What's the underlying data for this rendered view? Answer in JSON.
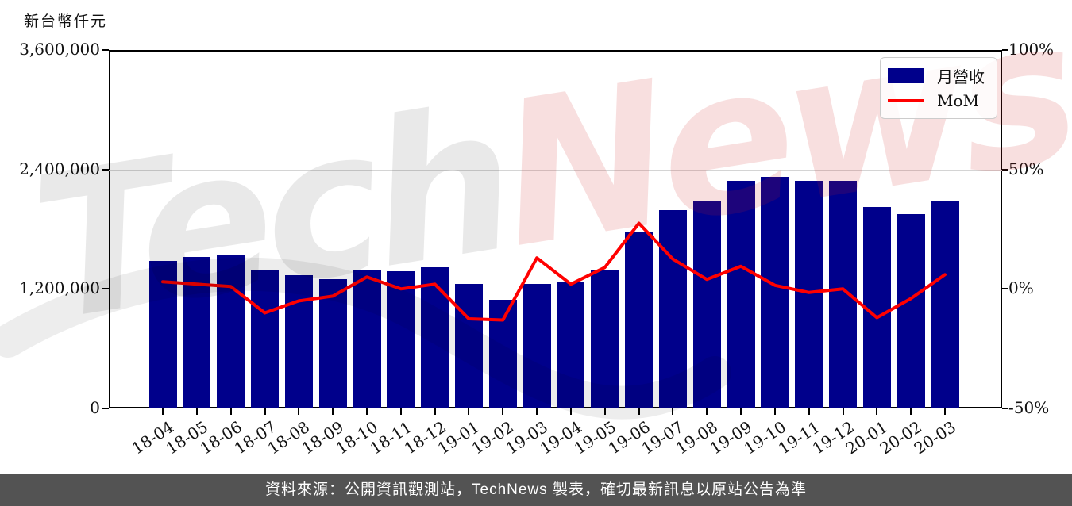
{
  "colors": {
    "bar": "#00008b",
    "line": "#ff0000",
    "grid": "#d4d4d4",
    "footer_bg": "#535353",
    "footer_text": "#ffffff",
    "watermark_gray": "rgba(0,0,0,0.085)",
    "watermark_red": "rgba(203,30,30,0.14)"
  },
  "y_axis_title": "新台幣仟元",
  "legend": {
    "items": [
      {
        "label": "月營收",
        "type": "bar",
        "color": "#00008b"
      },
      {
        "label": "MoM",
        "type": "line",
        "color": "#ff0000"
      }
    ]
  },
  "watermark": {
    "part1": "Tech",
    "part2": "News"
  },
  "footer": {
    "text": "資料來源：公開資訊觀測站，TechNews 製表，確切最新訊息以原站公告為準"
  },
  "chart_data": {
    "type": "bar",
    "title": "",
    "categories": [
      "18-04",
      "18-05",
      "18-06",
      "18-07",
      "18-08",
      "18-09",
      "18-10",
      "18-11",
      "18-12",
      "19-01",
      "19-02",
      "19-03",
      "19-04",
      "19-05",
      "19-06",
      "19-07",
      "19-08",
      "19-09",
      "19-10",
      "19-11",
      "19-12",
      "20-01",
      "20-02",
      "20-03"
    ],
    "series": [
      {
        "name": "月營收",
        "type": "bar",
        "axis": "left",
        "unit": "新台幣仟元",
        "color": "#00008b",
        "values": [
          1483000,
          1518000,
          1540000,
          1388000,
          1335000,
          1302000,
          1390000,
          1382000,
          1416000,
          1250000,
          1094000,
          1247000,
          1274000,
          1393000,
          1772000,
          1992000,
          2089000,
          2287000,
          2323000,
          2287000,
          2285000,
          2020000,
          1953000,
          2082000
        ]
      },
      {
        "name": "MoM",
        "type": "line",
        "axis": "right",
        "unit": "%",
        "color": "#ff0000",
        "values": [
          3,
          2,
          1,
          -10,
          -5,
          -3,
          5,
          0,
          2,
          -12.5,
          -13,
          13,
          2,
          9,
          27.5,
          12.5,
          4,
          9.5,
          1.5,
          -1.5,
          0,
          -12,
          -4,
          6
        ]
      }
    ],
    "left_axis": {
      "title": "新台幣仟元",
      "tick_labels": [
        "0",
        "1,200,000",
        "2,400,000",
        "3,600,000"
      ],
      "tick_values": [
        0,
        1200000,
        2400000,
        3600000
      ],
      "range": [
        0,
        3600000
      ]
    },
    "right_axis": {
      "tick_labels": [
        "-50%",
        "0%",
        "50%",
        "100%"
      ],
      "tick_values": [
        -50,
        0,
        50,
        100
      ],
      "range": [
        -50,
        100
      ]
    },
    "grid": "horizontal",
    "legend_position": "top-right"
  }
}
